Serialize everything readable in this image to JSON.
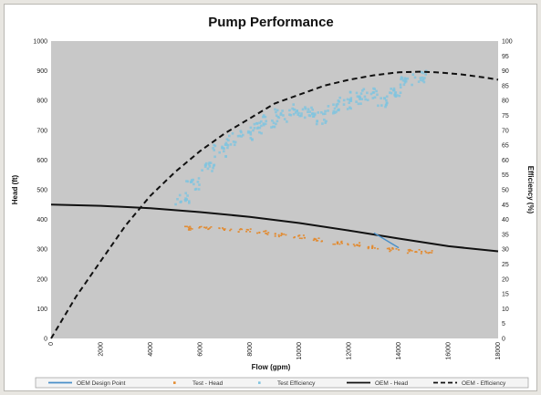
{
  "chart_data": {
    "type": "scatter",
    "title": "Pump Performance",
    "xlabel": "Flow (gpm)",
    "ylabel": "Head (ft)",
    "y2label": "Efficiency (%)",
    "xlim": [
      0,
      18000
    ],
    "ylim": [
      0,
      1000
    ],
    "y2lim": [
      0,
      100
    ],
    "xticks": [
      "0",
      "2000",
      "4000",
      "6000",
      "8000",
      "10000",
      "12000",
      "14000",
      "16000",
      "18000"
    ],
    "yticks": [
      "0",
      "100",
      "200",
      "300",
      "400",
      "500",
      "600",
      "700",
      "800",
      "900",
      "1000"
    ],
    "y2ticks": [
      "0",
      "5",
      "10",
      "15",
      "20",
      "25",
      "30",
      "35",
      "40",
      "45",
      "50",
      "55",
      "60",
      "65",
      "70",
      "75",
      "80",
      "85",
      "90",
      "95",
      "100"
    ],
    "grid": false,
    "legend_position": "bottom",
    "plot_background": "#c8c8c8",
    "series": [
      {
        "name": "OEM Design Point",
        "kind": "marker",
        "axis": "left",
        "color": "#4a90c8",
        "points": [
          [
            13000,
            355
          ],
          [
            13600,
            325
          ],
          [
            14000,
            305
          ],
          [
            13000,
            355
          ]
        ]
      },
      {
        "name": "Test - Head",
        "kind": "scatter",
        "axis": "left",
        "color": "#e38a2e",
        "points": [
          [
            5500,
            370
          ],
          [
            6200,
            372
          ],
          [
            7000,
            368
          ],
          [
            7800,
            362
          ],
          [
            8500,
            355
          ],
          [
            9200,
            348
          ],
          [
            10000,
            340
          ],
          [
            10800,
            330
          ],
          [
            11500,
            322
          ],
          [
            12200,
            315
          ],
          [
            13000,
            305
          ],
          [
            13800,
            298
          ],
          [
            14600,
            292
          ],
          [
            15100,
            290
          ]
        ]
      },
      {
        "name": "Test Efficiency",
        "kind": "scatter",
        "axis": "right",
        "color": "#7ec4e0",
        "points": [
          [
            5300,
            47
          ],
          [
            5700,
            52
          ],
          [
            6300,
            58
          ],
          [
            6800,
            63
          ],
          [
            7300,
            67
          ],
          [
            7800,
            69
          ],
          [
            8300,
            71
          ],
          [
            8800,
            73
          ],
          [
            9300,
            75
          ],
          [
            9800,
            77
          ],
          [
            10300,
            76
          ],
          [
            10800,
            74
          ],
          [
            11300,
            77
          ],
          [
            11800,
            79
          ],
          [
            12300,
            81
          ],
          [
            12800,
            82
          ],
          [
            13300,
            80
          ],
          [
            13800,
            83
          ],
          [
            14300,
            86
          ],
          [
            14800,
            88
          ]
        ]
      },
      {
        "name": "OEM - Head",
        "kind": "line",
        "axis": "left",
        "color": "#111111",
        "points": [
          [
            0,
            450
          ],
          [
            2000,
            446
          ],
          [
            4000,
            438
          ],
          [
            6000,
            425
          ],
          [
            8000,
            409
          ],
          [
            10000,
            388
          ],
          [
            12000,
            363
          ],
          [
            14000,
            336
          ],
          [
            16000,
            310
          ],
          [
            18000,
            293
          ]
        ]
      },
      {
        "name": "OEM - Efficiency",
        "kind": "dashed",
        "axis": "right",
        "color": "#111111",
        "points": [
          [
            0,
            0
          ],
          [
            1000,
            14
          ],
          [
            2000,
            26
          ],
          [
            3000,
            38
          ],
          [
            4000,
            48
          ],
          [
            5000,
            56
          ],
          [
            6000,
            63
          ],
          [
            7000,
            69
          ],
          [
            8000,
            74
          ],
          [
            9000,
            79
          ],
          [
            10000,
            82
          ],
          [
            11000,
            85
          ],
          [
            12000,
            87
          ],
          [
            13000,
            88.5
          ],
          [
            14000,
            89.5
          ],
          [
            14800,
            89.7
          ],
          [
            15500,
            89.5
          ],
          [
            16500,
            88.8
          ],
          [
            17500,
            87.7
          ],
          [
            18000,
            87
          ]
        ]
      }
    ]
  }
}
